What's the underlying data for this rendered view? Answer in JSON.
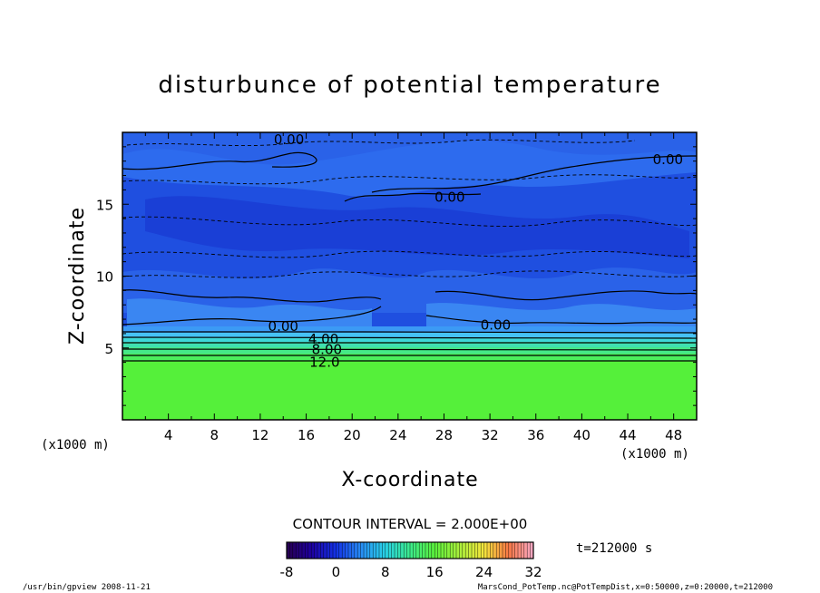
{
  "chart_data": {
    "type": "heatmap",
    "title": "disturbunce of potential temperature",
    "xlabel": "X-coordinate",
    "ylabel": "Z-coordinate",
    "x_unit": "(x1000 m)",
    "z_unit": "(x1000 m)",
    "xlim": [
      0,
      50
    ],
    "ylim": [
      0,
      20
    ],
    "x_ticks": [
      4,
      8,
      12,
      16,
      20,
      24,
      28,
      32,
      36,
      40,
      44,
      48
    ],
    "y_ticks": [
      5,
      10,
      15
    ],
    "contour_labels": [
      {
        "text": "0.00",
        "x": 14.0,
        "z": 6.5
      },
      {
        "text": "4.00",
        "x": 17.5,
        "z": 5.6
      },
      {
        "text": "8.00",
        "x": 17.8,
        "z": 4.9
      },
      {
        "text": "12.0",
        "x": 17.6,
        "z": 4.0
      },
      {
        "text": "0.00",
        "x": 32.5,
        "z": 6.6
      },
      {
        "text": "0.00",
        "x": 28.5,
        "z": 15.5
      },
      {
        "text": "0.00",
        "x": 47.5,
        "z": 18.1
      },
      {
        "text": "0.00",
        "x": 14.5,
        "z": 19.5
      }
    ],
    "contour_interval": "CONTOUR INTERVAL = 2.000E+00",
    "colorbar": {
      "min": -8,
      "max": 32,
      "ticks": [
        -8,
        0,
        8,
        16,
        24,
        32
      ]
    },
    "time_label": "t=212000 s",
    "field_profile": [
      {
        "z": 0,
        "value": 12
      },
      {
        "z": 3.9,
        "value": 12
      },
      {
        "z": 4.3,
        "value": 10
      },
      {
        "z": 5.0,
        "value": 6
      },
      {
        "z": 5.8,
        "value": 2
      },
      {
        "z": 6.3,
        "value": 0
      },
      {
        "z": 7.0,
        "value": -1.5
      },
      {
        "z": 20,
        "value": -2
      }
    ]
  },
  "footer": {
    "left": "/usr/bin/gpview   2008-11-21",
    "right": "MarsCond_PotTemp.nc@PotTempDist,x=0:50000,z=0:20000,t=212000"
  }
}
